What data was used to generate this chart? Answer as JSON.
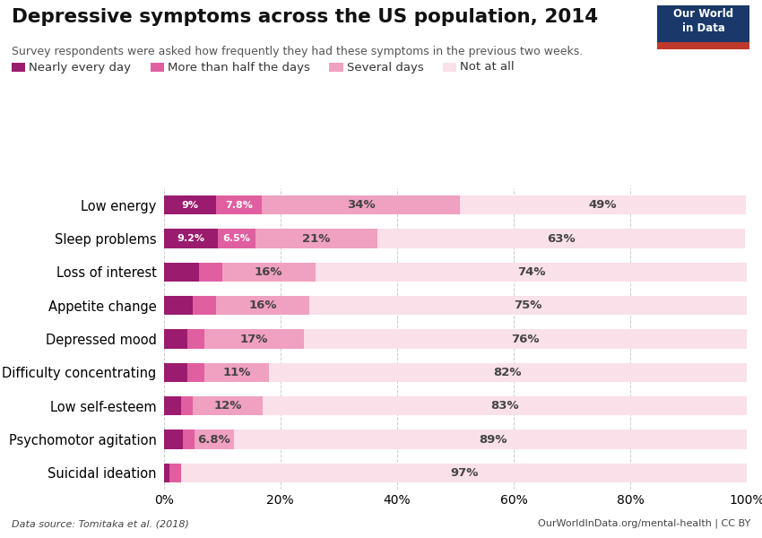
{
  "title": "Depressive symptoms across the US population, 2014",
  "subtitle": "Survey respondents were asked how frequently they had these symptoms in the previous two weeks.",
  "categories": [
    "Low energy",
    "Sleep problems",
    "Loss of interest",
    "Appetite change",
    "Depressed mood",
    "Difficulty concentrating",
    "Low self-esteem",
    "Psychomotor agitation",
    "Suicidal ideation"
  ],
  "series": {
    "Nearly every day": [
      9.0,
      9.2,
      6.0,
      5.0,
      4.0,
      4.0,
      3.0,
      3.2,
      1.0
    ],
    "More than half the days": [
      7.8,
      6.5,
      4.0,
      4.0,
      3.0,
      3.0,
      2.0,
      2.0,
      2.0
    ],
    "Several days": [
      34.0,
      21.0,
      16.0,
      16.0,
      17.0,
      11.0,
      12.0,
      6.8,
      0.0
    ],
    "Not at all": [
      49.0,
      63.0,
      74.0,
      75.0,
      76.0,
      82.0,
      83.0,
      89.0,
      97.0
    ]
  },
  "bar_labels": {
    "Nearly every day": [
      "9%",
      "9.2%",
      "",
      "",
      "",
      "",
      "",
      "",
      ""
    ],
    "More than half the days": [
      "7.8%",
      "6.5%",
      "",
      "",
      "",
      "",
      "",
      "",
      ""
    ],
    "Several days": [
      "34%",
      "21%",
      "16%",
      "16%",
      "17%",
      "11%",
      "12%",
      "6.8%",
      ""
    ],
    "Not at all": [
      "49%",
      "63%",
      "74%",
      "75%",
      "76%",
      "82%",
      "83%",
      "89%",
      "97%"
    ]
  },
  "colors": {
    "Nearly every day": "#9B1B6E",
    "More than half the days": "#E05FA0",
    "Several days": "#F0A0C0",
    "Not at all": "#FAE0E8"
  },
  "legend_labels": [
    "Nearly every day",
    "More than half the days",
    "Several days",
    "Not at all"
  ],
  "background_color": "#ffffff",
  "data_source": "Data source: Tomitaka et al. (2018)",
  "credit": "OurWorldInData.org/mental-health | CC BY",
  "logo_text": "Our World\nin Data",
  "logo_bg": "#1a3869",
  "logo_accent": "#c0392b"
}
